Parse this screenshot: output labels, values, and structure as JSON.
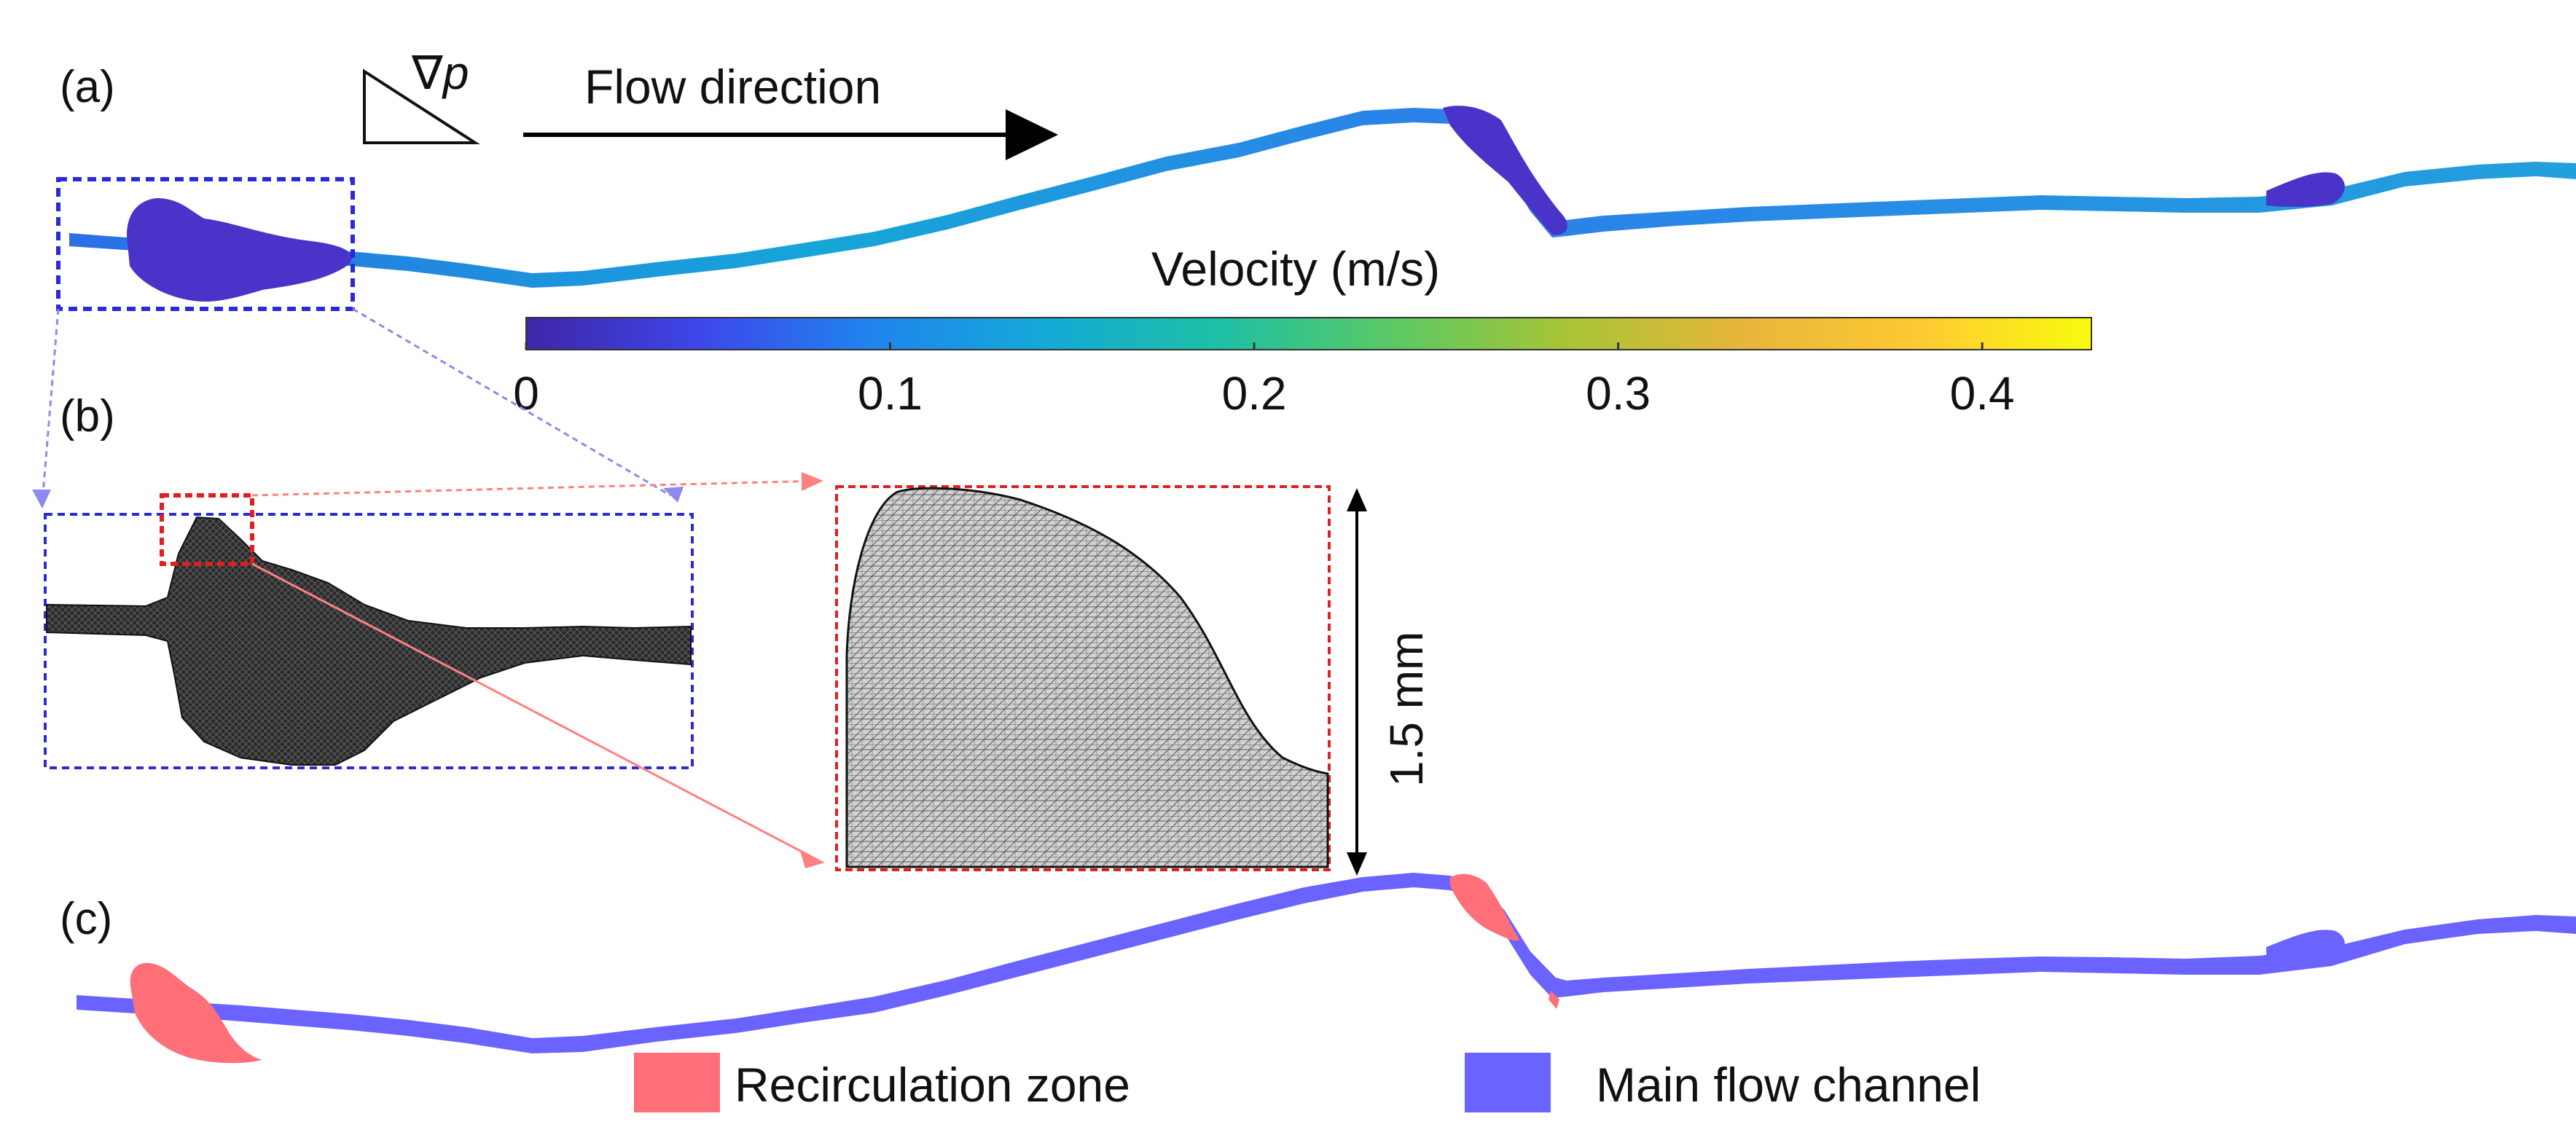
{
  "panels": {
    "a": "(a)",
    "b": "(b)",
    "c": "(c)"
  },
  "pressure_gradient_symbol": "∇p",
  "flow_direction_label": "Flow direction",
  "colorbar": {
    "title": "Velocity (m/s)",
    "min": 0,
    "max": 0.43,
    "ticks": [
      {
        "value": 0,
        "label": "0"
      },
      {
        "value": 0.1,
        "label": "0.1"
      },
      {
        "value": 0.2,
        "label": "0.2"
      },
      {
        "value": 0.3,
        "label": "0.3"
      },
      {
        "value": 0.4,
        "label": "0.4"
      }
    ],
    "colormap": [
      "#3e26a8",
      "#3d47e9",
      "#1f85ee",
      "#14aad6",
      "#1ec0a4",
      "#5cc963",
      "#a9c434",
      "#e8b53b",
      "#fdc932",
      "#f9fb0e"
    ]
  },
  "scale_bar_label": "1.5 mm",
  "legend": [
    {
      "label": "Recirculation zone",
      "color": "#ff6f78"
    },
    {
      "label": "Main flow channel",
      "color": "#6b63ff"
    }
  ],
  "colors": {
    "velocity_low": "#4a33c8",
    "velocity_channel": "#1f8fe0",
    "mesh_dark": "#2a2a2a",
    "mesh_light": "#cfcfcf",
    "zoom_box_blue": "#2b2bd6",
    "zoom_box_red": "#e02020",
    "connector_blue": "#8a8af0",
    "connector_red": "#ff8080"
  }
}
